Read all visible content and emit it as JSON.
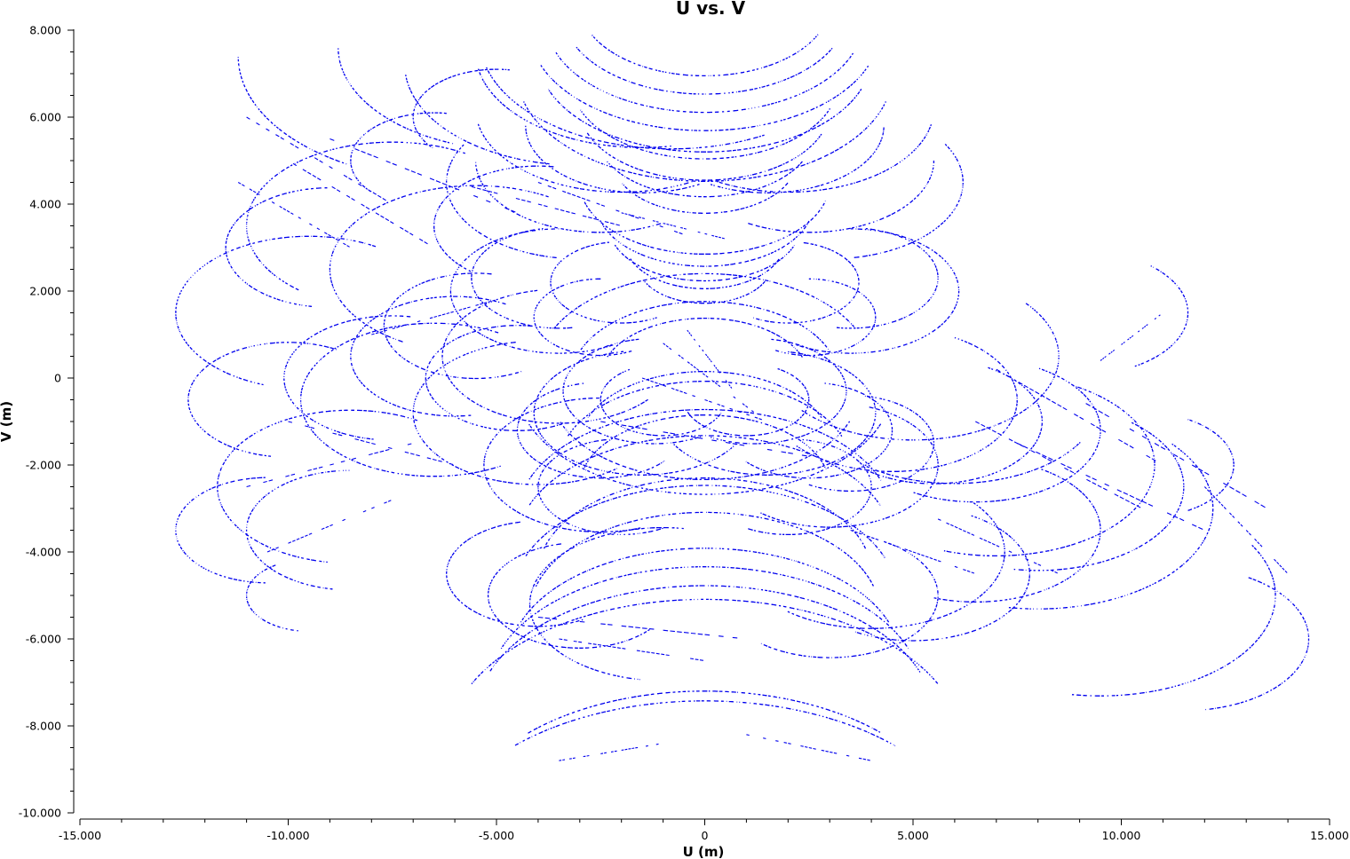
{
  "chart_data": {
    "type": "scatter",
    "title": "U vs. V",
    "xlabel": "U (m)",
    "ylabel": "V (m)",
    "xlim": [
      -15000,
      15000
    ],
    "ylim": [
      -10000,
      8000
    ],
    "x_ticks": [
      {
        "value": -15000,
        "label": "-15.000"
      },
      {
        "value": -10000,
        "label": "-10.000"
      },
      {
        "value": -5000,
        "label": "-5.000"
      },
      {
        "value": 0,
        "label": "0"
      },
      {
        "value": 5000,
        "label": "5.000"
      },
      {
        "value": 10000,
        "label": "10.000"
      },
      {
        "value": 15000,
        "label": "15.000"
      }
    ],
    "y_ticks": [
      {
        "value": 8000,
        "label": "8.000"
      },
      {
        "value": 6000,
        "label": "6.000"
      },
      {
        "value": 4000,
        "label": "4.000"
      },
      {
        "value": 2000,
        "label": "2.000"
      },
      {
        "value": 0,
        "label": "0"
      },
      {
        "value": -2000,
        "label": "-2.000"
      },
      {
        "value": -4000,
        "label": "-4.000"
      },
      {
        "value": -6000,
        "label": "-6.000"
      },
      {
        "value": -8000,
        "label": "-8.000"
      },
      {
        "value": -10000,
        "label": "-10.000"
      }
    ],
    "grid": false,
    "color": "#0000ee",
    "series": [
      {
        "arcs": [
          [
            0,
            8000,
            4200,
            200,
            340
          ],
          [
            0,
            8200,
            3800,
            200,
            340
          ],
          [
            0,
            8400,
            3400,
            205,
            335
          ],
          [
            0,
            8600,
            3000,
            205,
            335
          ],
          [
            0,
            7000,
            4500,
            195,
            345
          ],
          [
            0,
            7400,
            4000,
            200,
            340
          ],
          [
            -800,
            7800,
            4600,
            195,
            300
          ],
          [
            -1500,
            7500,
            4000,
            190,
            280
          ],
          [
            -3000,
            7200,
            4200,
            185,
            260
          ],
          [
            -4500,
            7600,
            4300,
            180,
            250
          ],
          [
            -6000,
            7400,
            5200,
            180,
            240
          ],
          [
            0,
            6800,
            3200,
            200,
            340
          ],
          [
            0,
            6200,
            3000,
            200,
            340
          ],
          [
            0,
            5600,
            2600,
            205,
            335
          ],
          [
            0,
            5000,
            2200,
            205,
            335
          ],
          [
            -2000,
            6200,
            3500,
            190,
            300
          ],
          [
            2000,
            6200,
            3500,
            240,
            350
          ],
          [
            -2500,
            5000,
            3000,
            180,
            300
          ],
          [
            2500,
            5000,
            3000,
            240,
            360
          ],
          [
            1500,
            5800,
            2800,
            240,
            360
          ],
          [
            -1500,
            5800,
            2800,
            180,
            300
          ],
          [
            0,
            4500,
            3000,
            195,
            345
          ],
          [
            0,
            4000,
            2600,
            195,
            345
          ],
          [
            0,
            3500,
            2300,
            200,
            340
          ],
          [
            0,
            3100,
            1900,
            200,
            340
          ],
          [
            0,
            2600,
            1600,
            205,
            335
          ],
          [
            -3000,
            4500,
            3200,
            150,
            260
          ],
          [
            3000,
            4500,
            3200,
            280,
            390
          ],
          [
            -3500,
            2000,
            2600,
            90,
            300
          ],
          [
            3500,
            2000,
            2600,
            240,
            450
          ],
          [
            -3500,
            2300,
            2100,
            100,
            280
          ],
          [
            3500,
            2300,
            2100,
            260,
            440
          ],
          [
            -2000,
            2200,
            1700,
            100,
            300
          ],
          [
            2000,
            2200,
            1700,
            240,
            440
          ],
          [
            -2500,
            1400,
            1600,
            90,
            300
          ],
          [
            2500,
            1400,
            1600,
            240,
            450
          ],
          [
            -5500,
            1200,
            2200,
            80,
            300
          ],
          [
            -6000,
            500,
            2500,
            60,
            280
          ],
          [
            -6500,
            -500,
            3200,
            60,
            300
          ],
          [
            -7500,
            0,
            2600,
            80,
            260
          ],
          [
            -4500,
            0,
            2200,
            80,
            300
          ],
          [
            -3500,
            500,
            2800,
            100,
            320
          ],
          [
            -4000,
            -800,
            3000,
            100,
            310
          ],
          [
            0,
            0,
            2500,
            20,
            160
          ],
          [
            0,
            0,
            3200,
            20,
            160
          ],
          [
            0,
            200,
            4000,
            25,
            155
          ],
          [
            0,
            -300,
            3700,
            200,
            340
          ],
          [
            0,
            -200,
            4500,
            200,
            340
          ],
          [
            -1500,
            -800,
            2600,
            100,
            330
          ],
          [
            1500,
            -800,
            2600,
            210,
            440
          ],
          [
            -2500,
            -1200,
            2000,
            100,
            320
          ],
          [
            2500,
            -1200,
            2000,
            220,
            440
          ],
          [
            -1000,
            -500,
            1500,
            120,
            340
          ],
          [
            1000,
            -500,
            1500,
            200,
            420
          ],
          [
            5000,
            500,
            3500,
            220,
            400
          ],
          [
            4500,
            -500,
            3000,
            220,
            420
          ],
          [
            5500,
            -1000,
            2600,
            230,
            420
          ],
          [
            6500,
            -1200,
            3000,
            240,
            420
          ],
          [
            7000,
            -2000,
            3800,
            250,
            420
          ],
          [
            8000,
            -2500,
            3500,
            260,
            410
          ],
          [
            3500,
            -1500,
            2000,
            240,
            440
          ],
          [
            3000,
            -2000,
            2600,
            230,
            430
          ],
          [
            0,
            -1500,
            3000,
            20,
            160
          ],
          [
            0,
            -2000,
            3500,
            20,
            160
          ],
          [
            0,
            -2500,
            3000,
            15,
            165
          ],
          [
            -2000,
            -2500,
            2000,
            100,
            300
          ],
          [
            2000,
            -2500,
            2000,
            240,
            440
          ],
          [
            0,
            -3200,
            4500,
            20,
            160
          ],
          [
            0,
            -3800,
            4500,
            20,
            160
          ],
          [
            0,
            -4500,
            4000,
            15,
            165
          ],
          [
            0,
            -5000,
            4600,
            20,
            160
          ],
          [
            0,
            -5400,
            4200,
            15,
            165
          ],
          [
            -1000,
            -5200,
            3200,
            80,
            260
          ],
          [
            0,
            -6500,
            4700,
            20,
            160
          ],
          [
            0,
            -7200,
            5200,
            20,
            160
          ],
          [
            0,
            -7800,
            5500,
            20,
            160
          ],
          [
            0,
            -8500,
            6200,
            25,
            155
          ],
          [
            0,
            -10500,
            6000,
            45,
            135
          ],
          [
            0,
            -11000,
            6500,
            45,
            135
          ],
          [
            -3000,
            -5000,
            2200,
            100,
            320
          ],
          [
            3000,
            -5000,
            2600,
            230,
            420
          ],
          [
            -4000,
            -4500,
            2200,
            100,
            300
          ],
          [
            4000,
            -4000,
            3200,
            230,
            400
          ],
          [
            5000,
            -4500,
            2800,
            240,
            420
          ],
          [
            6500,
            -3500,
            3000,
            250,
            420
          ],
          [
            8000,
            -3000,
            4200,
            260,
            400
          ],
          [
            9500,
            -5000,
            4200,
            260,
            390
          ],
          [
            11500,
            -6000,
            3000,
            280,
            420
          ],
          [
            10500,
            -2000,
            2200,
            300,
            420
          ],
          [
            9000,
            1500,
            2600,
            300,
            410
          ],
          [
            6000,
            -500,
            3500,
            230,
            330
          ],
          [
            -10000,
            -500,
            2400,
            60,
            260
          ],
          [
            -8500,
            -2500,
            3200,
            60,
            260
          ],
          [
            -9000,
            3000,
            2500,
            90,
            260
          ],
          [
            -9500,
            1500,
            3200,
            60,
            250
          ],
          [
            -7500,
            3500,
            3500,
            60,
            230
          ],
          [
            -6500,
            5000,
            2000,
            80,
            220
          ],
          [
            -5000,
            6000,
            2000,
            80,
            220
          ],
          [
            -4000,
            3500,
            2500,
            80,
            230
          ],
          [
            -5500,
            2500,
            3500,
            60,
            240
          ],
          [
            -8500,
            -3500,
            2500,
            90,
            260
          ],
          [
            -10500,
            -3500,
            2200,
            90,
            270
          ],
          [
            -9500,
            -5000,
            1500,
            120,
            260
          ],
          [
            -2500,
            -2000,
            2800,
            90,
            290
          ],
          [
            -1200,
            -300,
            2200,
            100,
            300
          ],
          [
            1200,
            -300,
            2200,
            240,
            440
          ]
        ]
      },
      {
        "segments": [
          [
            -11000,
            6000,
            -7500,
            4000
          ],
          [
            -10000,
            5000,
            -6500,
            3000
          ],
          [
            -11200,
            4500,
            -8500,
            3000
          ],
          [
            -9000,
            5500,
            -4500,
            3800
          ],
          [
            -6000,
            4500,
            -2000,
            3500
          ],
          [
            -4000,
            4500,
            -500,
            3300
          ],
          [
            -2000,
            3800,
            500,
            3200
          ],
          [
            -10000,
            -1000,
            -6000,
            -2000
          ],
          [
            -11000,
            -2500,
            -7000,
            -1500
          ],
          [
            -10500,
            -4000,
            -7500,
            -2800
          ],
          [
            -8000,
            1000,
            -5000,
            1800
          ],
          [
            -2500,
            -1000,
            2500,
            -1800
          ],
          [
            -1500,
            0,
            1500,
            -1000
          ],
          [
            -1000,
            800,
            1200,
            -800
          ],
          [
            -500,
            1200,
            700,
            -300
          ],
          [
            6500,
            -1000,
            10500,
            -3000
          ],
          [
            7000,
            200,
            11000,
            -2000
          ],
          [
            7500,
            -1500,
            12000,
            -3500
          ],
          [
            9000,
            -500,
            13500,
            -3000
          ],
          [
            9500,
            400,
            11000,
            1500
          ],
          [
            12000,
            -2500,
            14000,
            -4500
          ],
          [
            3500,
            -3500,
            6500,
            -4500
          ],
          [
            5500,
            -3200,
            8500,
            -4500
          ],
          [
            -3500,
            -6000,
            0,
            -6500
          ],
          [
            -4000,
            -5500,
            1000,
            -6000
          ],
          [
            -3500,
            -8800,
            -1000,
            -8400
          ],
          [
            1000,
            -8200,
            4000,
            -8800
          ]
        ]
      }
    ]
  }
}
